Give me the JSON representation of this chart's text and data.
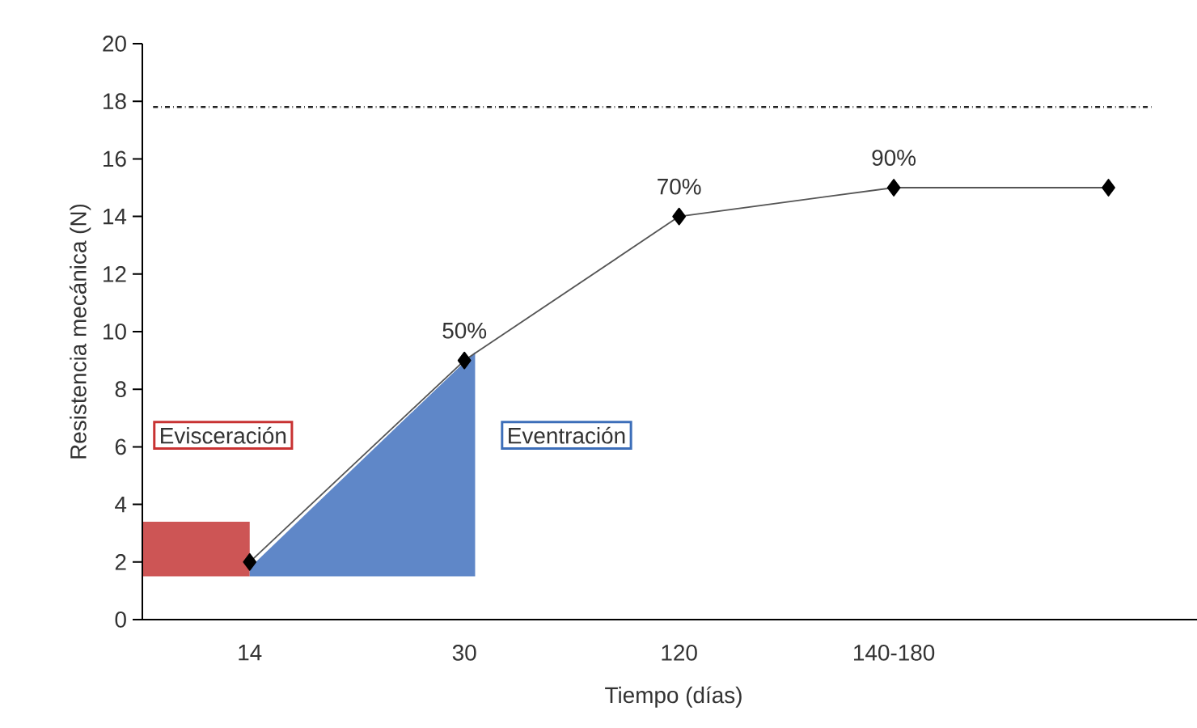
{
  "chart_data": {
    "type": "line",
    "xlabel": "Tiempo (días)",
    "ylabel": "Resistencia mecánica (N)",
    "categories": [
      "14",
      "30",
      "120",
      "140-180",
      null
    ],
    "series": [
      {
        "color": "#555555",
        "values": [
          2,
          9,
          14,
          15,
          15
        ]
      }
    ],
    "marker": "diamond",
    "line_style": "solid",
    "ylim": [
      0,
      20
    ],
    "yticks": [
      0,
      2,
      4,
      6,
      8,
      10,
      12,
      14,
      16,
      18,
      20
    ],
    "ref_lines": [
      {
        "axis": "y",
        "value": 17.8,
        "color": "#222222",
        "line_style": "dashdot"
      }
    ],
    "annotations": [
      {
        "text": "50%",
        "x": "30",
        "y": 9
      },
      {
        "text": "70%",
        "x": "120",
        "y": 14
      },
      {
        "text": "90%",
        "x": "140-180",
        "y": 15
      },
      "Evisceración",
      "Eventración"
    ]
  }
}
